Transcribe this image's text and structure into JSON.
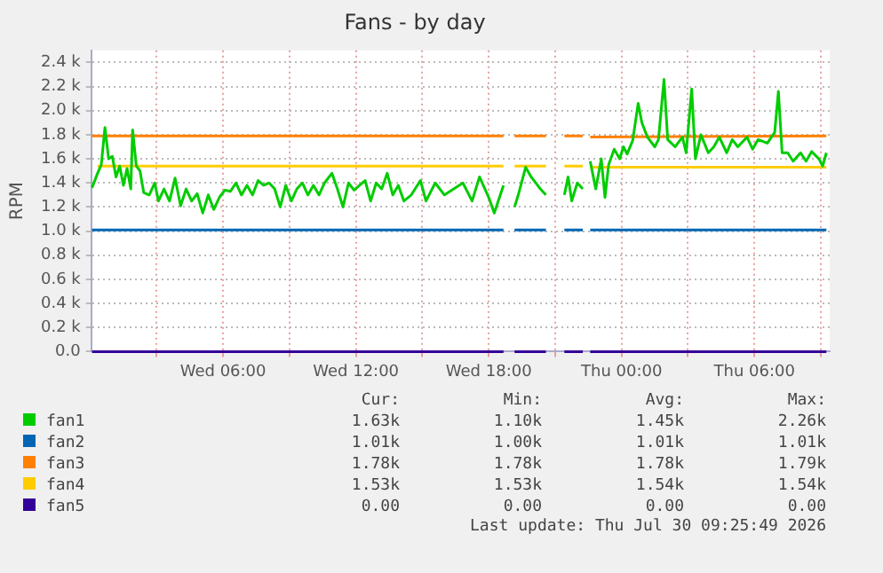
{
  "chart_data": {
    "type": "line",
    "title": "Fans - by day",
    "ylabel": "RPM",
    "xlim": [
      "2026-07-29T00:03",
      "2026-07-30T09:24"
    ],
    "ylim": [
      0,
      2500
    ],
    "xticks": [
      {
        "value": "2026-07-29T03:00",
        "label": null
      },
      {
        "value": "2026-07-29T06:00",
        "label": "Wed 06:00"
      },
      {
        "value": "2026-07-29T09:00",
        "label": null
      },
      {
        "value": "2026-07-29T12:00",
        "label": "Wed 12:00"
      },
      {
        "value": "2026-07-29T15:00",
        "label": null
      },
      {
        "value": "2026-07-29T18:00",
        "label": "Wed 18:00"
      },
      {
        "value": "2026-07-29T21:00",
        "label": null
      },
      {
        "value": "2026-07-30T00:00",
        "label": "Thu 00:00"
      },
      {
        "value": "2026-07-30T03:00",
        "label": null
      },
      {
        "value": "2026-07-30T06:00",
        "label": "Thu 06:00"
      },
      {
        "value": "2026-07-30T09:00",
        "label": null
      }
    ],
    "yticks": [
      {
        "value": 0,
        "label": "0.0"
      },
      {
        "value": 200,
        "label": "0.2 k"
      },
      {
        "value": 400,
        "label": "0.4 k"
      },
      {
        "value": 600,
        "label": "0.6 k"
      },
      {
        "value": 800,
        "label": "0.8 k"
      },
      {
        "value": 1000,
        "label": "1.0 k"
      },
      {
        "value": 1200,
        "label": "1.2 k"
      },
      {
        "value": 1400,
        "label": "1.4 k"
      },
      {
        "value": 1600,
        "label": "1.6 k"
      },
      {
        "value": 1800,
        "label": "1.8 k"
      },
      {
        "value": 2000,
        "label": "2.0 k"
      },
      {
        "value": 2200,
        "label": "2.2 k"
      },
      {
        "value": 2400,
        "label": "2.4 k"
      }
    ],
    "grid": true,
    "legend": "bottom",
    "marker": "none",
    "line_style": "solid",
    "series": [
      {
        "name": "fan1",
        "color": "#00cc00",
        "x": [
          "2026-07-29T00:05",
          "2026-07-29T00:20",
          "2026-07-29T00:30",
          "2026-07-29T00:40",
          "2026-07-29T00:50",
          "2026-07-29T01:00",
          "2026-07-29T01:10",
          "2026-07-29T01:20",
          "2026-07-29T01:30",
          "2026-07-29T01:40",
          "2026-07-29T01:50",
          "2026-07-29T01:55",
          "2026-07-29T02:05",
          "2026-07-29T02:15",
          "2026-07-29T02:25",
          "2026-07-29T02:40",
          "2026-07-29T02:55",
          "2026-07-29T03:05",
          "2026-07-29T03:20",
          "2026-07-29T03:35",
          "2026-07-29T03:50",
          "2026-07-29T04:05",
          "2026-07-29T04:20",
          "2026-07-29T04:35",
          "2026-07-29T04:50",
          "2026-07-29T05:05",
          "2026-07-29T05:20",
          "2026-07-29T05:35",
          "2026-07-29T05:50",
          "2026-07-29T06:05",
          "2026-07-29T06:20",
          "2026-07-29T06:35",
          "2026-07-29T06:50",
          "2026-07-29T07:05",
          "2026-07-29T07:20",
          "2026-07-29T07:35",
          "2026-07-29T07:50",
          "2026-07-29T08:05",
          "2026-07-29T08:20",
          "2026-07-29T08:35",
          "2026-07-29T08:50",
          "2026-07-29T09:05",
          "2026-07-29T09:20",
          "2026-07-29T09:35",
          "2026-07-29T09:50",
          "2026-07-29T10:05",
          "2026-07-29T10:20",
          "2026-07-29T10:35",
          "2026-07-29T10:55",
          "2026-07-29T11:10",
          "2026-07-29T11:25",
          "2026-07-29T11:40",
          "2026-07-29T11:55",
          "2026-07-29T12:10",
          "2026-07-29T12:25",
          "2026-07-29T12:40",
          "2026-07-29T12:55",
          "2026-07-29T13:10",
          "2026-07-29T13:25",
          "2026-07-29T13:40",
          "2026-07-29T13:55",
          "2026-07-29T14:10",
          "2026-07-29T14:30",
          "2026-07-29T14:55",
          "2026-07-29T15:10",
          "2026-07-29T15:35",
          "2026-07-29T16:00",
          "2026-07-29T16:25",
          "2026-07-29T16:50",
          "2026-07-29T17:15",
          "2026-07-29T17:35",
          "2026-07-29T18:00",
          "2026-07-29T18:15",
          "2026-07-29T18:40",
          "2026-07-29T18:54",
          "2026-07-29T19:10",
          "2026-07-29T19:20",
          "2026-07-29T19:40",
          "2026-07-29T19:55",
          "2026-07-29T20:20",
          "2026-07-29T20:35",
          "2026-07-29T20:54",
          "2026-07-29T21:25",
          "2026-07-29T21:35",
          "2026-07-29T21:45",
          "2026-07-29T22:00",
          "2026-07-29T22:15",
          "2026-07-29T22:24",
          "2026-07-29T22:35",
          "2026-07-29T22:50",
          "2026-07-29T23:05",
          "2026-07-29T23:15",
          "2026-07-29T23:25",
          "2026-07-29T23:40",
          "2026-07-29T23:55",
          "2026-07-30T00:05",
          "2026-07-30T00:15",
          "2026-07-30T00:30",
          "2026-07-30T00:45",
          "2026-07-30T00:55",
          "2026-07-30T01:10",
          "2026-07-30T01:30",
          "2026-07-30T01:40",
          "2026-07-30T01:55",
          "2026-07-30T02:05",
          "2026-07-30T02:25",
          "2026-07-30T02:45",
          "2026-07-30T02:55",
          "2026-07-30T03:10",
          "2026-07-30T03:20",
          "2026-07-30T03:35",
          "2026-07-30T03:55",
          "2026-07-30T04:10",
          "2026-07-30T04:25",
          "2026-07-30T04:45",
          "2026-07-30T05:00",
          "2026-07-30T05:15",
          "2026-07-30T05:40",
          "2026-07-30T05:55",
          "2026-07-30T06:10",
          "2026-07-30T06:35",
          "2026-07-30T06:55",
          "2026-07-30T07:05",
          "2026-07-30T07:15",
          "2026-07-30T07:30",
          "2026-07-30T07:45",
          "2026-07-30T08:05",
          "2026-07-30T08:20",
          "2026-07-30T08:35",
          "2026-07-30T08:55",
          "2026-07-30T09:05",
          "2026-07-30T09:15"
        ],
        "values": [
          1360,
          1480,
          1550,
          1860,
          1600,
          1620,
          1450,
          1540,
          1380,
          1520,
          1350,
          1840,
          1540,
          1500,
          1320,
          1300,
          1400,
          1250,
          1350,
          1250,
          1440,
          1210,
          1350,
          1250,
          1310,
          1150,
          1300,
          1180,
          1280,
          1340,
          1330,
          1400,
          1300,
          1380,
          1300,
          1420,
          1380,
          1400,
          1350,
          1200,
          1380,
          1250,
          1350,
          1400,
          1300,
          1380,
          1300,
          1400,
          1480,
          1350,
          1200,
          1400,
          1340,
          1380,
          1420,
          1250,
          1400,
          1350,
          1480,
          1300,
          1380,
          1250,
          1300,
          1420,
          1250,
          1400,
          1300,
          1350,
          1400,
          1250,
          1450,
          1280,
          1150,
          1380,
          null,
          1200,
          1300,
          1530,
          1450,
          1350,
          1300,
          null,
          1300,
          1450,
          1250,
          1400,
          1350,
          null,
          1580,
          1350,
          1600,
          1280,
          1550,
          1680,
          1600,
          1700,
          1640,
          1750,
          2060,
          1900,
          1780,
          1700,
          1760,
          2260,
          1760,
          1700,
          1780,
          1650,
          2180,
          1600,
          1800,
          1650,
          1700,
          1780,
          1650,
          1760,
          1700,
          1780,
          1680,
          1760,
          1730,
          1820,
          2160,
          1650,
          1650,
          1580,
          1650,
          1580,
          1660,
          1600,
          1540,
          1650
        ]
      },
      {
        "name": "fan2",
        "color": "#0066b3",
        "x": [
          "2026-07-29T00:05",
          "2026-07-29T18:40",
          "2026-07-29T18:54",
          "2026-07-29T19:10",
          "2026-07-29T20:35",
          "2026-07-29T20:54",
          "2026-07-29T21:25",
          "2026-07-29T22:15",
          "2026-07-29T22:24",
          "2026-07-29T22:35",
          "2026-07-30T09:15"
        ],
        "values": [
          1010,
          1010,
          null,
          1010,
          1010,
          null,
          1010,
          1010,
          null,
          1010,
          1010
        ]
      },
      {
        "name": "fan3",
        "color": "#ff8000",
        "x": [
          "2026-07-29T00:05",
          "2026-07-29T18:40",
          "2026-07-29T18:54",
          "2026-07-29T19:10",
          "2026-07-29T20:35",
          "2026-07-29T20:54",
          "2026-07-29T21:25",
          "2026-07-29T22:15",
          "2026-07-29T22:24",
          "2026-07-29T22:35",
          "2026-07-30T09:15"
        ],
        "values": [
          1790,
          1790,
          null,
          1790,
          1790,
          null,
          1790,
          1790,
          null,
          1780,
          1790
        ]
      },
      {
        "name": "fan4",
        "color": "#ffcc00",
        "x": [
          "2026-07-29T00:20",
          "2026-07-29T18:40",
          "2026-07-29T18:54",
          "2026-07-29T19:10",
          "2026-07-29T20:35",
          "2026-07-29T20:54",
          "2026-07-29T21:25",
          "2026-07-29T22:15",
          "2026-07-29T22:24",
          "2026-07-29T22:35",
          "2026-07-30T09:15"
        ],
        "values": [
          1540,
          1540,
          null,
          1540,
          1540,
          null,
          1540,
          1540,
          null,
          1530,
          1530
        ]
      },
      {
        "name": "fan5",
        "color": "#330099",
        "x": [
          "2026-07-29T00:05",
          "2026-07-29T18:40",
          "2026-07-29T18:54",
          "2026-07-29T19:10",
          "2026-07-29T20:35",
          "2026-07-29T20:54",
          "2026-07-29T21:25",
          "2026-07-29T22:15",
          "2026-07-29T22:24",
          "2026-07-29T22:35",
          "2026-07-30T09:15"
        ],
        "values": [
          0,
          0,
          null,
          0,
          0,
          null,
          0,
          0,
          null,
          0,
          0
        ]
      }
    ],
    "annotations": [
      "Cur:",
      "Min:",
      "Avg:",
      "Max:",
      "1.63k",
      "1.10k",
      "1.45k",
      "2.26k",
      "1.01k",
      "1.00k",
      "1.01k",
      "1.01k",
      "1.78k",
      "1.78k",
      "1.78k",
      "1.79k",
      "1.53k",
      "1.53k",
      "1.54k",
      "1.54k",
      "0.00",
      "0.00",
      "0.00",
      "0.00",
      "Last update: Thu Jul 30 09:25:49 2026"
    ]
  }
}
